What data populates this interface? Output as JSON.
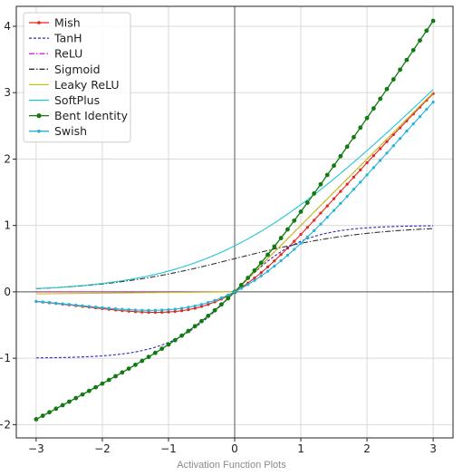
{
  "caption": "Activation Function Plots",
  "chart_data": {
    "type": "line",
    "title": "",
    "xlabel": "",
    "ylabel": "",
    "xlim": [
      -3.3,
      3.3
    ],
    "ylim": [
      -2.2,
      4.3
    ],
    "grid": true,
    "legend_position": "top-left",
    "x_ticks": [
      -3,
      -2,
      -1,
      0,
      1,
      2,
      3
    ],
    "y_ticks": [
      -2,
      -1,
      0,
      1,
      2,
      3,
      4
    ],
    "x_tick_labels": [
      "−3",
      "−2",
      "−1",
      "0",
      "1",
      "2",
      "3"
    ],
    "y_tick_labels": [
      "−2",
      "−1",
      "0",
      "1",
      "2",
      "3",
      "4"
    ],
    "x": [
      -3.0,
      -2.5,
      -2.0,
      -1.5,
      -1.0,
      -0.5,
      0.0,
      0.5,
      1.0,
      1.5,
      2.0,
      2.5,
      3.0
    ],
    "series": [
      {
        "name": "Mish",
        "color": "#e8231c",
        "style": "solid-dot",
        "values": [
          -0.146,
          -0.185,
          -0.252,
          -0.303,
          -0.303,
          -0.222,
          0.0,
          0.375,
          0.865,
          1.404,
          1.944,
          2.475,
          2.987
        ]
      },
      {
        "name": "TanH",
        "color": "#2b2bb8",
        "style": "dashed",
        "values": [
          -0.995,
          -0.987,
          -0.964,
          -0.905,
          -0.762,
          -0.462,
          0.0,
          0.462,
          0.762,
          0.905,
          0.964,
          0.987,
          0.995
        ]
      },
      {
        "name": "ReLU",
        "color": "#cc22cc",
        "style": "dashdot",
        "values": [
          0,
          0,
          0,
          0,
          0,
          0,
          0,
          0.5,
          1.0,
          1.5,
          2.0,
          2.5,
          3.0
        ]
      },
      {
        "name": "Sigmoid",
        "color": "#333333",
        "style": "dashdot",
        "values": [
          0.047,
          0.076,
          0.119,
          0.182,
          0.269,
          0.378,
          0.5,
          0.622,
          0.731,
          0.818,
          0.881,
          0.924,
          0.953
        ]
      },
      {
        "name": "Leaky ReLU",
        "color": "#c8c21a",
        "style": "solid",
        "values": [
          -0.03,
          -0.025,
          -0.02,
          -0.015,
          -0.01,
          -0.005,
          0.0,
          0.5,
          1.0,
          1.5,
          2.0,
          2.5,
          3.0
        ]
      },
      {
        "name": "SoftPlus",
        "color": "#22c4d4",
        "style": "solid",
        "values": [
          0.049,
          0.079,
          0.127,
          0.201,
          0.313,
          0.474,
          0.693,
          0.974,
          1.313,
          1.701,
          2.127,
          2.579,
          3.049
        ]
      },
      {
        "name": "Bent Identity",
        "color": "#117a11",
        "style": "solid-dot",
        "values": [
          -1.919,
          -1.654,
          -1.382,
          -1.099,
          -0.793,
          -0.441,
          0.0,
          0.559,
          1.207,
          1.901,
          2.618,
          3.346,
          4.081
        ]
      },
      {
        "name": "Swish",
        "color": "#22b4d8",
        "style": "solid-dot",
        "values": [
          -0.142,
          -0.189,
          -0.238,
          -0.273,
          -0.269,
          -0.189,
          0.0,
          0.311,
          0.731,
          1.227,
          1.762,
          2.311,
          2.858
        ]
      }
    ]
  }
}
